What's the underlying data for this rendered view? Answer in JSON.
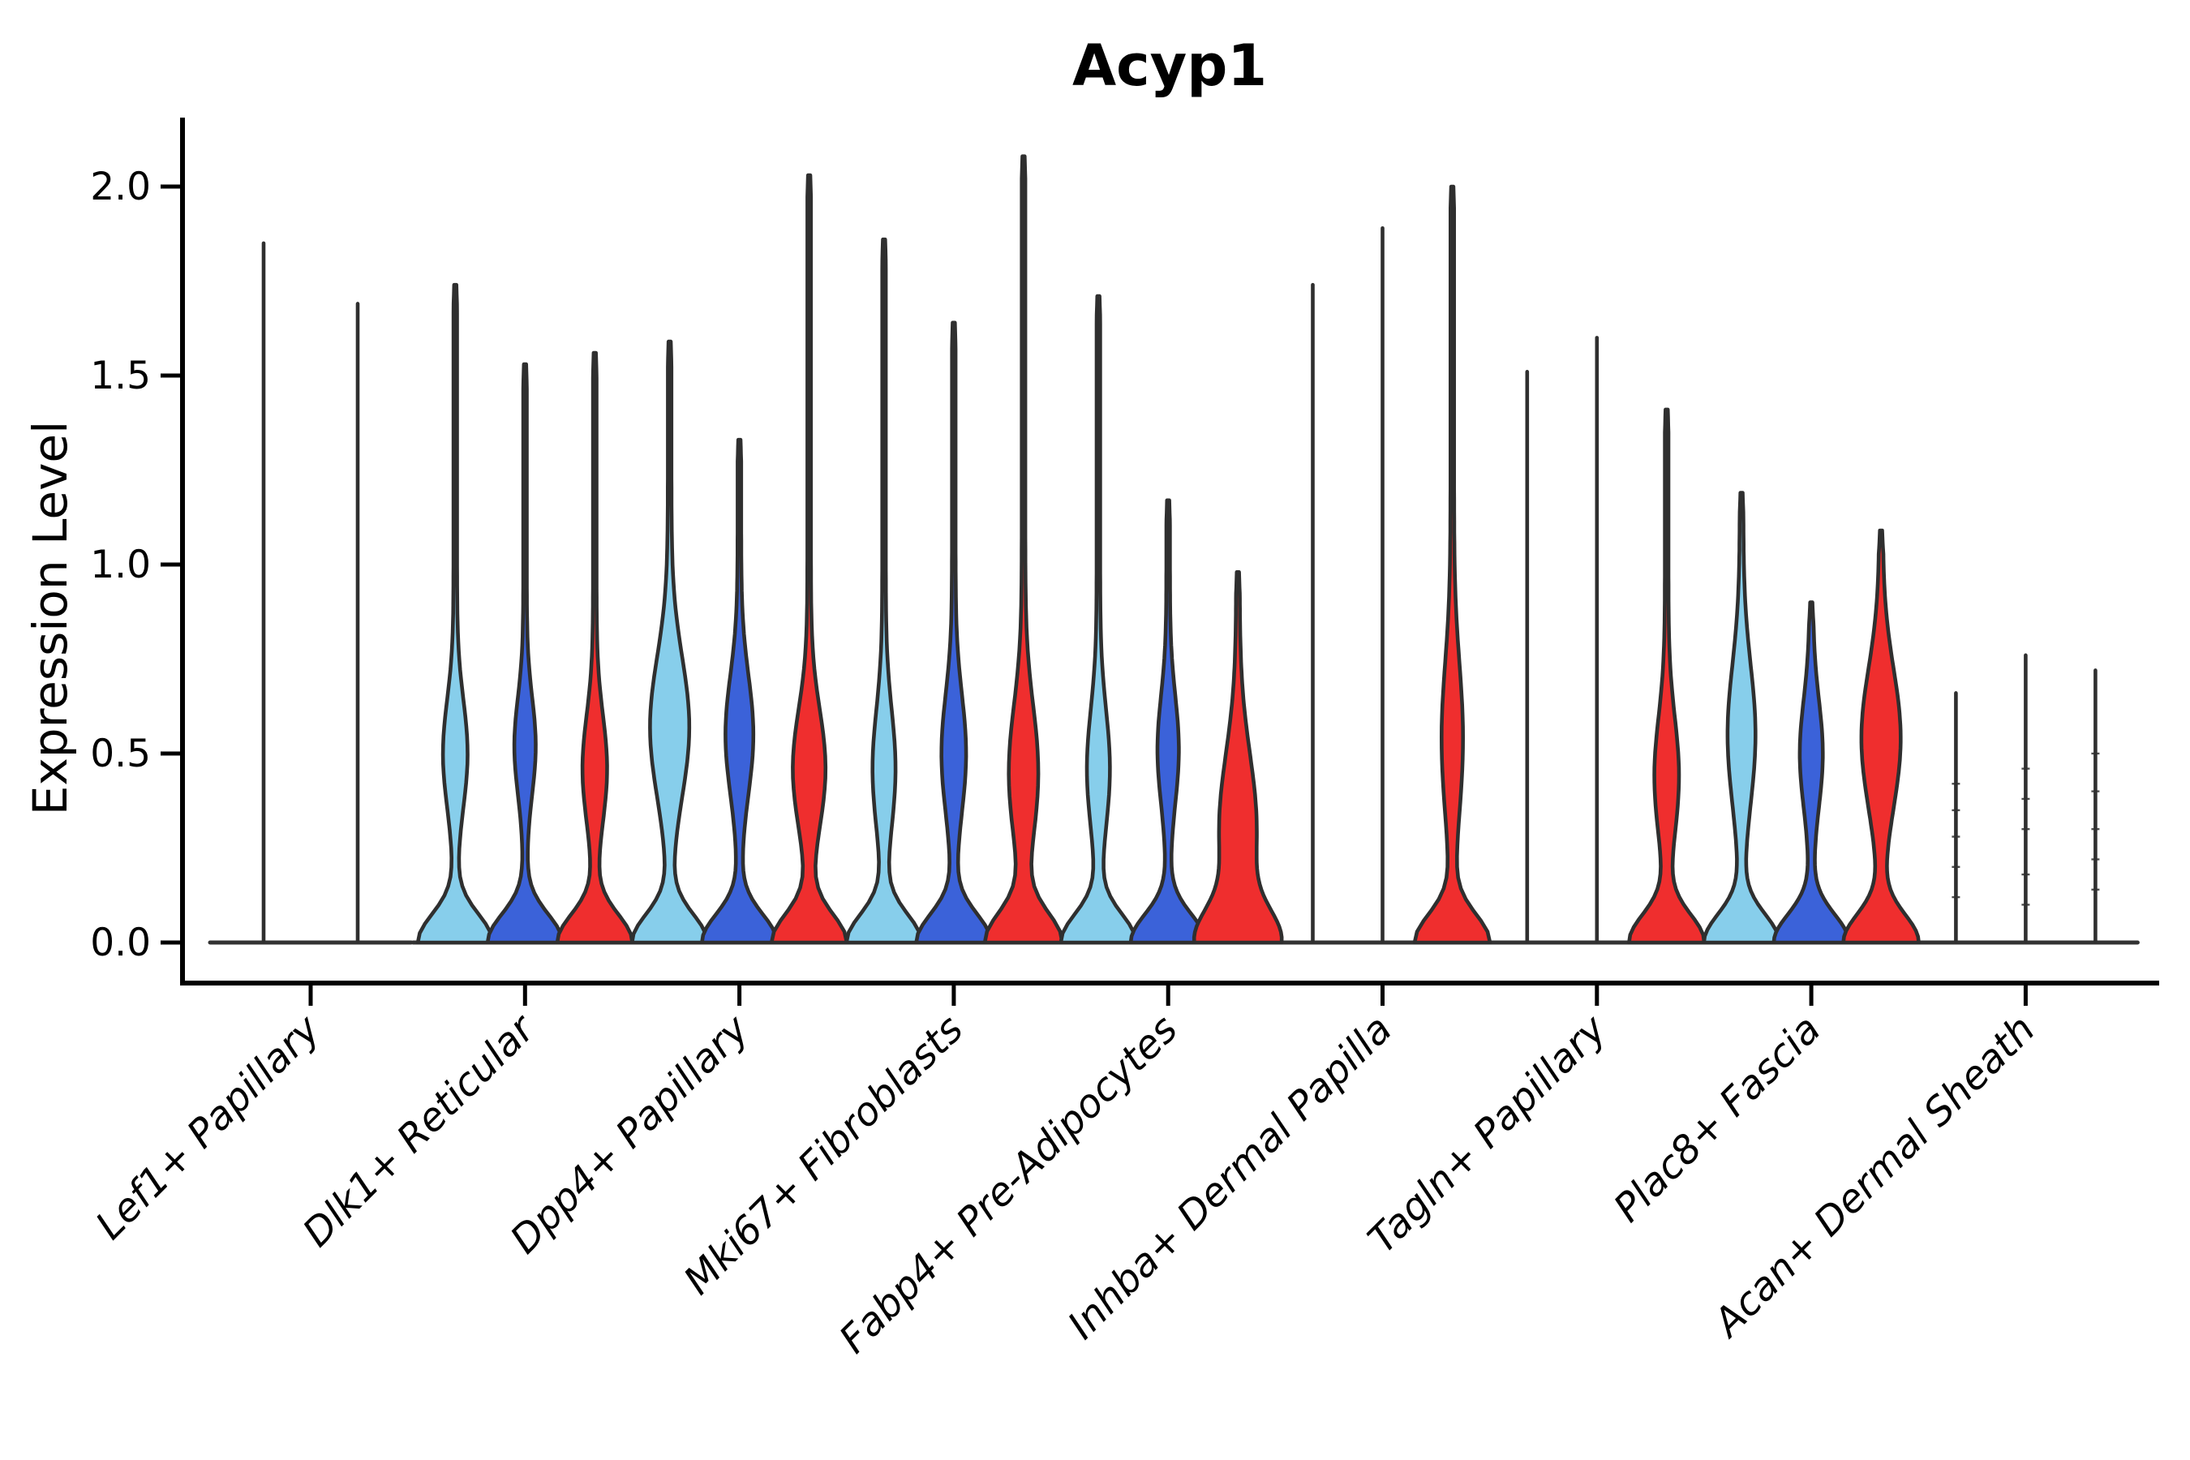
{
  "title": "Acyp1",
  "ylabel": "Expression Level",
  "chart_data": {
    "type": "violin",
    "title": "Acyp1",
    "xlabel": "",
    "ylabel": "Expression Level",
    "ylim": [
      -0.11,
      2.19
    ],
    "yticks": [
      0.0,
      0.5,
      1.0,
      1.5,
      2.0
    ],
    "ytick_labels": [
      "0.0",
      "0.5",
      "1.0",
      "1.5",
      "2.0"
    ],
    "grid": false,
    "legend": "none",
    "series_colors": {
      "light_blue": "#87CEEB",
      "dark_blue": "#3B62D9",
      "red": "#EF2E2E"
    },
    "outline_color": "#2F2F2F",
    "axis_color": "#000000",
    "baseline_color": "#333333",
    "categories": [
      "Lef1+ Papillary",
      "Dlk1+ Reticular",
      "Dpp4+ Papillary",
      "Mki67+ Fibroblasts",
      "Fabp4+ Pre-Adipocytes",
      "Inhba+ Dermal Papilla",
      "Tagln+ Papillary",
      "Plac8+ Fascia",
      "Acan+ Dermal Sheath"
    ],
    "groups": [
      {
        "label": "Lef1+ Papillary",
        "violins": [
          {
            "series": "light_blue",
            "max": 1.85,
            "flat": true
          },
          {
            "series": "dark_blue",
            "max": 1.69,
            "flat": true
          }
        ]
      },
      {
        "label": "Dlk1+ Reticular",
        "violins": [
          {
            "series": "light_blue",
            "max": 1.74,
            "bulge_center": 0.5,
            "bulge_hw": 13,
            "bulge_sigma": 0.2,
            "base_hw": 44,
            "base_sigma": 0.105
          },
          {
            "series": "dark_blue",
            "max": 1.53,
            "bulge_center": 0.52,
            "bulge_hw": 11,
            "bulge_sigma": 0.18,
            "base_hw": 44,
            "base_sigma": 0.105
          },
          {
            "series": "red",
            "max": 1.56,
            "bulge_center": 0.46,
            "bulge_hw": 13,
            "bulge_sigma": 0.2,
            "base_hw": 44,
            "base_sigma": 0.105
          }
        ]
      },
      {
        "label": "Dpp4+ Papillary",
        "violins": [
          {
            "series": "light_blue",
            "max": 1.59,
            "bulge_center": 0.57,
            "bulge_hw": 22,
            "bulge_sigma": 0.26,
            "base_hw": 44,
            "base_sigma": 0.105
          },
          {
            "series": "dark_blue",
            "max": 1.33,
            "bulge_center": 0.55,
            "bulge_hw": 15,
            "bulge_sigma": 0.22,
            "base_hw": 44,
            "base_sigma": 0.105
          },
          {
            "series": "red",
            "max": 2.03,
            "bulge_center": 0.46,
            "bulge_hw": 18,
            "bulge_sigma": 0.22,
            "base_hw": 44,
            "base_sigma": 0.105
          }
        ]
      },
      {
        "label": "Mki67+ Fibroblasts",
        "violins": [
          {
            "series": "light_blue",
            "max": 1.86,
            "bulge_center": 0.46,
            "bulge_hw": 12,
            "bulge_sigma": 0.22,
            "base_hw": 44,
            "base_sigma": 0.105
          },
          {
            "series": "dark_blue",
            "max": 1.64,
            "bulge_center": 0.5,
            "bulge_hw": 13,
            "bulge_sigma": 0.22,
            "base_hw": 44,
            "base_sigma": 0.105
          },
          {
            "series": "red",
            "max": 2.08,
            "bulge_center": 0.45,
            "bulge_hw": 16,
            "bulge_sigma": 0.25,
            "base_hw": 45,
            "base_sigma": 0.11
          }
        ]
      },
      {
        "label": "Fabp4+ Pre-Adipocytes",
        "violins": [
          {
            "series": "light_blue",
            "max": 1.71,
            "bulge_center": 0.46,
            "bulge_hw": 12,
            "bulge_sigma": 0.22,
            "base_hw": 44,
            "base_sigma": 0.105
          },
          {
            "series": "dark_blue",
            "max": 1.17,
            "bulge_center": 0.51,
            "bulge_hw": 11,
            "bulge_sigma": 0.2,
            "base_hw": 44,
            "base_sigma": 0.105
          },
          {
            "series": "red",
            "max": 0.98,
            "bulge_center": 0.3,
            "bulge_hw": 21,
            "bulge_sigma": 0.28,
            "base_hw": 45,
            "base_sigma": 0.12
          }
        ]
      },
      {
        "label": "Inhba+ Dermal Papilla",
        "violins": [
          {
            "series": "light_blue",
            "max": 1.74,
            "flat": true
          },
          {
            "series": "dark_blue",
            "max": 1.89,
            "flat": true
          },
          {
            "series": "red",
            "max": 2.0,
            "bulge_center": 0.54,
            "bulge_hw": 11,
            "bulge_sigma": 0.28,
            "base_hw": 44,
            "base_sigma": 0.105
          }
        ]
      },
      {
        "label": "Tagln+ Papillary",
        "violins": [
          {
            "series": "light_blue",
            "max": 1.51,
            "flat": true
          },
          {
            "series": "dark_blue",
            "max": 1.6,
            "flat": true
          },
          {
            "series": "red",
            "max": 1.41,
            "bulge_center": 0.44,
            "bulge_hw": 13,
            "bulge_sigma": 0.22,
            "base_hw": 44,
            "base_sigma": 0.105
          }
        ]
      },
      {
        "label": "Plac8+ Fascia",
        "violins": [
          {
            "series": "light_blue",
            "max": 1.19,
            "bulge_center": 0.55,
            "bulge_hw": 15,
            "bulge_sigma": 0.26,
            "base_hw": 44,
            "base_sigma": 0.105
          },
          {
            "series": "dark_blue",
            "max": 0.9,
            "bulge_center": 0.5,
            "bulge_hw": 12,
            "bulge_sigma": 0.2,
            "base_hw": 44,
            "base_sigma": 0.105
          },
          {
            "series": "red",
            "max": 1.09,
            "bulge_center": 0.54,
            "bulge_hw": 22,
            "bulge_sigma": 0.26,
            "base_hw": 44,
            "base_sigma": 0.105
          }
        ]
      },
      {
        "label": "Acan+ Dermal Sheath",
        "violins": [
          {
            "series": "light_blue",
            "max": 0.66,
            "flat": true,
            "marks": [
              0.12,
              0.2,
              0.28,
              0.35,
              0.42
            ]
          },
          {
            "series": "dark_blue",
            "max": 0.76,
            "flat": true,
            "marks": [
              0.1,
              0.18,
              0.3,
              0.38,
              0.46
            ]
          },
          {
            "series": "red",
            "max": 0.72,
            "flat": true,
            "marks": [
              0.14,
              0.22,
              0.3,
              0.4,
              0.5
            ]
          }
        ]
      }
    ]
  }
}
